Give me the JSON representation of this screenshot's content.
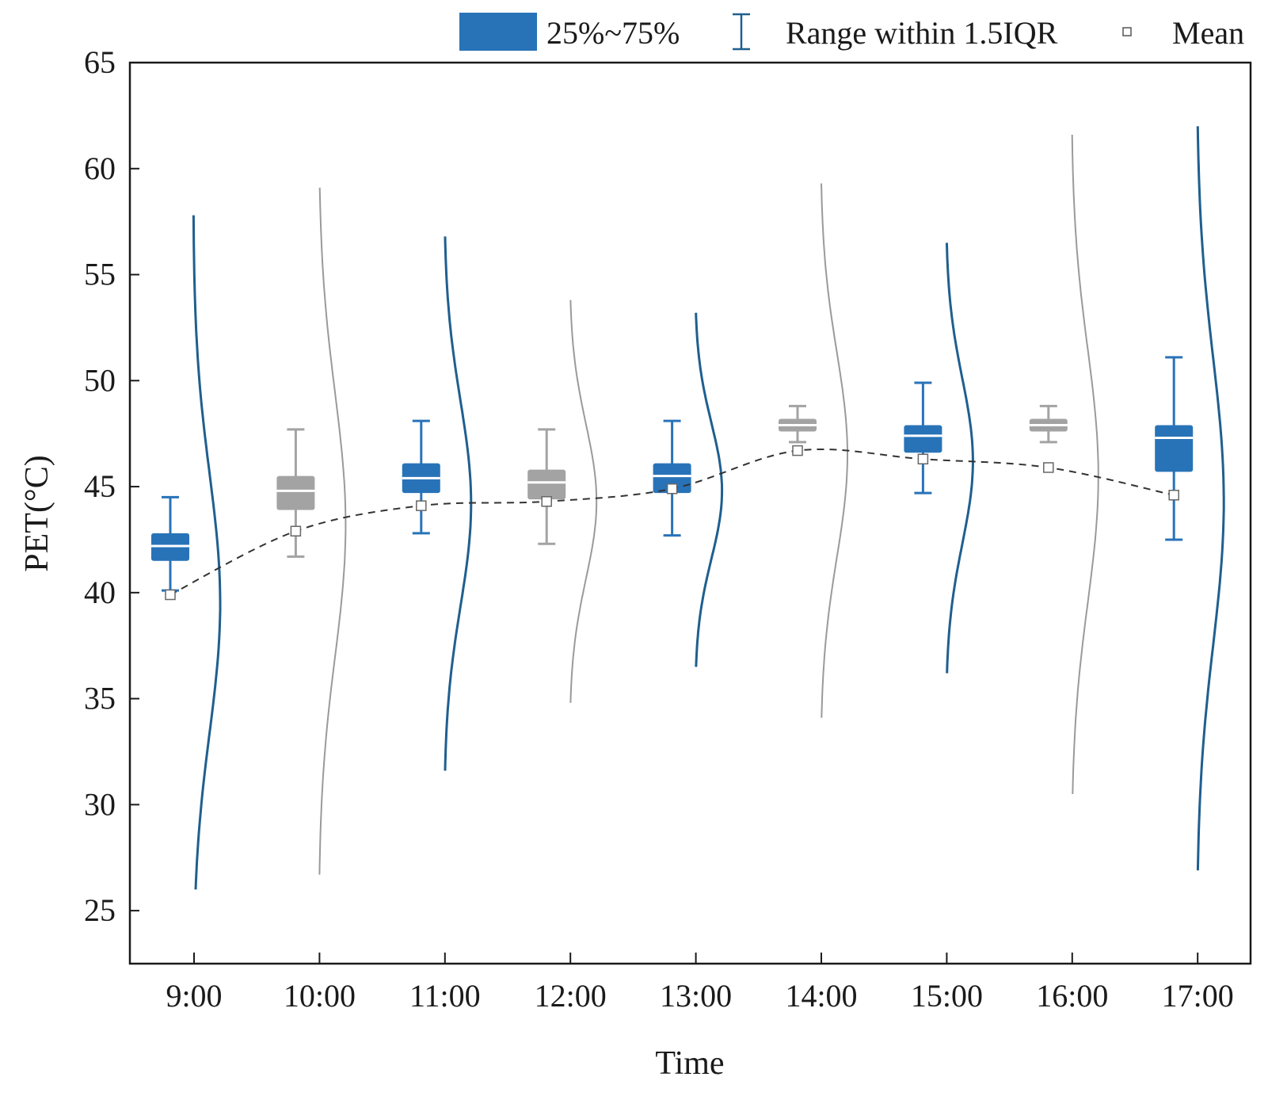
{
  "chart_data": {
    "type": "box",
    "title": "",
    "xlabel": "Time",
    "ylabel": "PET(°C)",
    "ylim": [
      22.5,
      65
    ],
    "yticks": [
      25,
      30,
      35,
      40,
      45,
      50,
      55,
      60,
      65
    ],
    "categories": [
      "9:00",
      "10:00",
      "11:00",
      "12:00",
      "13:00",
      "14:00",
      "15:00",
      "16:00",
      "17:00"
    ],
    "legend": {
      "box_label": "25%~75%",
      "whisker_label": "Range within 1.5IQR",
      "mean_label": "Mean"
    },
    "colors": {
      "highlight": "#2873b8",
      "muted": "#a3a3a3",
      "curve_highlight": "#1f5f8f",
      "curve_muted": "#9a9a9a",
      "mean_line": "#333333"
    },
    "series": [
      {
        "time": "9:00",
        "style": "highlight",
        "whisker_low": 40.1,
        "q1": 41.5,
        "median": 42.2,
        "q3": 42.8,
        "whisker_high": 44.5,
        "mean": 39.9,
        "dist_min": 26.0,
        "dist_max": 57.8,
        "dist_peak": 39.5
      },
      {
        "time": "10:00",
        "style": "muted",
        "whisker_low": 41.7,
        "q1": 43.9,
        "median": 44.8,
        "q3": 45.5,
        "whisker_high": 47.7,
        "mean": 42.9,
        "dist_min": 26.7,
        "dist_max": 59.1,
        "dist_peak": 43.2
      },
      {
        "time": "11:00",
        "style": "highlight",
        "whisker_low": 42.8,
        "q1": 44.7,
        "median": 45.4,
        "q3": 46.1,
        "whisker_high": 48.1,
        "mean": 44.1,
        "dist_min": 31.6,
        "dist_max": 56.8,
        "dist_peak": 44.2
      },
      {
        "time": "12:00",
        "style": "muted",
        "whisker_low": 42.3,
        "q1": 44.4,
        "median": 45.2,
        "q3": 45.8,
        "whisker_high": 47.7,
        "mean": 44.3,
        "dist_min": 34.8,
        "dist_max": 53.8,
        "dist_peak": 44.3
      },
      {
        "time": "13:00",
        "style": "highlight",
        "whisker_low": 42.7,
        "q1": 44.7,
        "median": 45.5,
        "q3": 46.1,
        "whisker_high": 48.1,
        "mean": 44.9,
        "dist_min": 36.5,
        "dist_max": 53.2,
        "dist_peak": 44.8
      },
      {
        "time": "14:00",
        "style": "muted",
        "whisker_low": 47.1,
        "q1": 47.6,
        "median": 47.9,
        "q3": 48.2,
        "whisker_high": 48.8,
        "mean": 46.7,
        "dist_min": 34.1,
        "dist_max": 59.3,
        "dist_peak": 46.5
      },
      {
        "time": "15:00",
        "style": "highlight",
        "whisker_low": 44.7,
        "q1": 46.6,
        "median": 47.4,
        "q3": 47.9,
        "whisker_high": 49.9,
        "mean": 46.3,
        "dist_min": 36.2,
        "dist_max": 56.5,
        "dist_peak": 46.2
      },
      {
        "time": "16:00",
        "style": "muted",
        "whisker_low": 47.1,
        "q1": 47.6,
        "median": 47.9,
        "q3": 48.2,
        "whisker_high": 48.8,
        "mean": 45.9,
        "dist_min": 30.5,
        "dist_max": 61.6,
        "dist_peak": 45.5
      },
      {
        "time": "17:00",
        "style": "highlight",
        "whisker_low": 42.5,
        "q1": 45.7,
        "median": 47.3,
        "q3": 47.9,
        "whisker_high": 51.1,
        "mean": 44.6,
        "dist_min": 26.9,
        "dist_max": 62.0,
        "dist_peak": 44.3
      }
    ]
  }
}
